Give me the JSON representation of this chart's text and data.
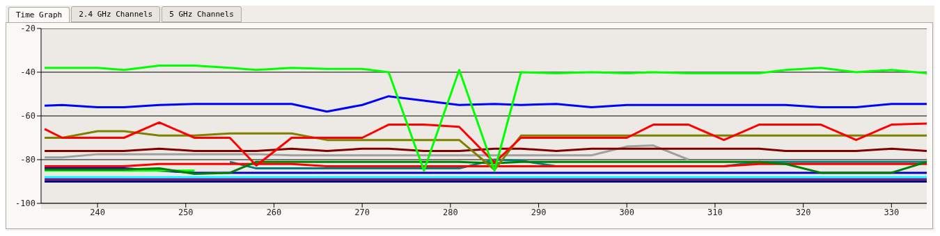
{
  "chart_data": {
    "type": "line",
    "annotations": [
      "Time Graph",
      "2.4 GHz Channels",
      "5 GHz Channels"
    ],
    "x": [
      234,
      236,
      240,
      243,
      247,
      251,
      255,
      258,
      262,
      266,
      270,
      273,
      277,
      281,
      285,
      288,
      292,
      296,
      300,
      303,
      307,
      311,
      315,
      318,
      322,
      326,
      330,
      334
    ],
    "xlim": [
      233.6,
      334
    ],
    "xticks": [
      240,
      250,
      260,
      270,
      280,
      290,
      300,
      310,
      320,
      330
    ],
    "ylim": [
      -100,
      -20
    ],
    "yticks": [
      -100,
      -80,
      -60,
      -40,
      -20
    ],
    "grid": "y",
    "series": [
      {
        "color": "#000080",
        "values": [
          -90,
          -90,
          -90,
          -90,
          -90,
          -90,
          -90,
          -90,
          -90,
          -90,
          -90,
          -90,
          -90,
          -90,
          -90,
          -90,
          -90,
          -90,
          -90,
          -90,
          -90,
          -90,
          -90,
          -90,
          -90,
          -90,
          -90,
          -90
        ]
      },
      {
        "color": "#800080",
        "values": [
          -89,
          -89,
          -89,
          -89,
          -89,
          -89,
          -89,
          -89,
          -89,
          -89,
          -89,
          -89,
          -89,
          -89,
          -89,
          -89,
          -89,
          -89,
          -89,
          -89,
          -89,
          -89,
          -89,
          -89,
          -89,
          -89,
          -89,
          -89
        ]
      },
      {
        "color": "#00ffff",
        "values": [
          -88,
          -88,
          -88,
          -88,
          -88,
          -88,
          -88,
          -88,
          -88,
          -88,
          -88,
          -88,
          -88,
          -88,
          -88,
          -88,
          -88,
          -88,
          -88,
          -88,
          -88,
          -88,
          -88,
          -88,
          -88,
          -88,
          -88,
          -88
        ]
      },
      {
        "color": "#0000c0",
        "values": [
          -84,
          -84,
          -84,
          -84,
          -85,
          -86,
          -86,
          -86,
          -86,
          -86,
          -86,
          -86,
          -86,
          -86,
          -86,
          -86,
          -86,
          -86,
          -86,
          -86,
          -86,
          -86,
          -86,
          -86,
          -86,
          -86,
          -86,
          -86
        ]
      },
      {
        "color": "#00ff00",
        "values": [
          -85,
          -85,
          -85,
          -85,
          -85,
          -85,
          null,
          null,
          null,
          null,
          null,
          null,
          null,
          null,
          null,
          null,
          null,
          null,
          null,
          null,
          null,
          null,
          null,
          null,
          null,
          null,
          null,
          null
        ]
      },
      {
        "color": "#008080",
        "values": [
          null,
          null,
          null,
          null,
          null,
          null,
          -81,
          -84,
          -84,
          -84,
          -84,
          -84,
          -84,
          -84,
          -80,
          -80.5,
          -83,
          -83,
          -83,
          -83,
          -83,
          -83,
          -81,
          -81,
          -81,
          -81,
          -81,
          -81
        ]
      },
      {
        "color": "#ff0000",
        "values": [
          -83,
          -83,
          -83,
          -83,
          -82,
          -82,
          -82,
          -82,
          -82,
          -83,
          -83,
          -83,
          -83,
          -83,
          -83,
          -83,
          -83,
          -83,
          -83,
          -83,
          -83,
          -83,
          -82,
          -82,
          -82,
          -82,
          -82,
          -82
        ]
      },
      {
        "color": "#008000",
        "values": [
          -84.5,
          -84.5,
          -84.5,
          -84.5,
          -84,
          -86.5,
          -86,
          -81,
          -81,
          -81,
          -81,
          -81,
          -81,
          -81,
          -81.7,
          -81,
          -81,
          -81,
          -81,
          -81,
          -81,
          -81,
          -81,
          -82,
          -86,
          -86,
          -86,
          -81
        ]
      },
      {
        "color": "#a0a0a0",
        "values": [
          -79,
          -79,
          -77.5,
          -77.5,
          -77.5,
          -77.5,
          -77.5,
          -77.5,
          -78,
          -78,
          -78,
          -78,
          -78,
          -78,
          -78,
          -78,
          -78,
          -78,
          -74,
          -73.5,
          -80,
          null,
          null,
          null,
          null,
          null,
          null,
          null
        ]
      },
      {
        "color": "#800000",
        "values": [
          -76,
          -76,
          -76,
          -76,
          -75,
          -76,
          -76,
          -76,
          -75,
          -76,
          -75,
          -75,
          -76,
          -76,
          -75,
          -75,
          -76,
          -75,
          -75,
          -75,
          -75,
          -75,
          -75,
          -76,
          -76,
          -76,
          -75,
          -76
        ]
      },
      {
        "color": "#808000",
        "values": [
          -70,
          -70,
          -67,
          -67,
          -69,
          -69,
          -68,
          -68,
          -68,
          -71,
          -71,
          -71,
          -71,
          -71,
          -84.6,
          -69,
          -69,
          -69,
          -69,
          -69,
          -69,
          -69,
          -69,
          -69,
          -69,
          -69,
          -69,
          -69
        ]
      },
      {
        "color": "#ff0000",
        "values": [
          -66,
          -70,
          -70,
          -70,
          -63,
          -70,
          -70,
          -82.7,
          -70,
          -70,
          -70,
          -64,
          -64,
          -65,
          -81.4,
          -70,
          -70,
          -70,
          -70,
          -64,
          -64,
          -71,
          -64,
          -64,
          -64,
          -71,
          -64,
          -63.5
        ]
      },
      {
        "color": "#0000ff",
        "values": [
          -55.3,
          -55,
          -56,
          -56,
          -55,
          -54.5,
          -54.5,
          -54.5,
          -54.5,
          -58,
          -55,
          -51,
          -53,
          -55,
          -54.5,
          -55,
          -54.5,
          -56,
          -55,
          -55,
          -55,
          -55,
          -55,
          -55,
          -56,
          -56,
          -54.5,
          -54.5
        ]
      },
      {
        "color": "#00ff00",
        "values": [
          -38,
          -38,
          -38,
          -39,
          -37,
          -37,
          -38,
          -39,
          -38,
          -38.5,
          -38.5,
          -40,
          -85,
          -39,
          -85,
          -40,
          -40.5,
          -40,
          -40.5,
          -40,
          -40.5,
          -40.5,
          -40.5,
          -39,
          -38,
          -40,
          -39,
          -40.5
        ]
      }
    ]
  }
}
